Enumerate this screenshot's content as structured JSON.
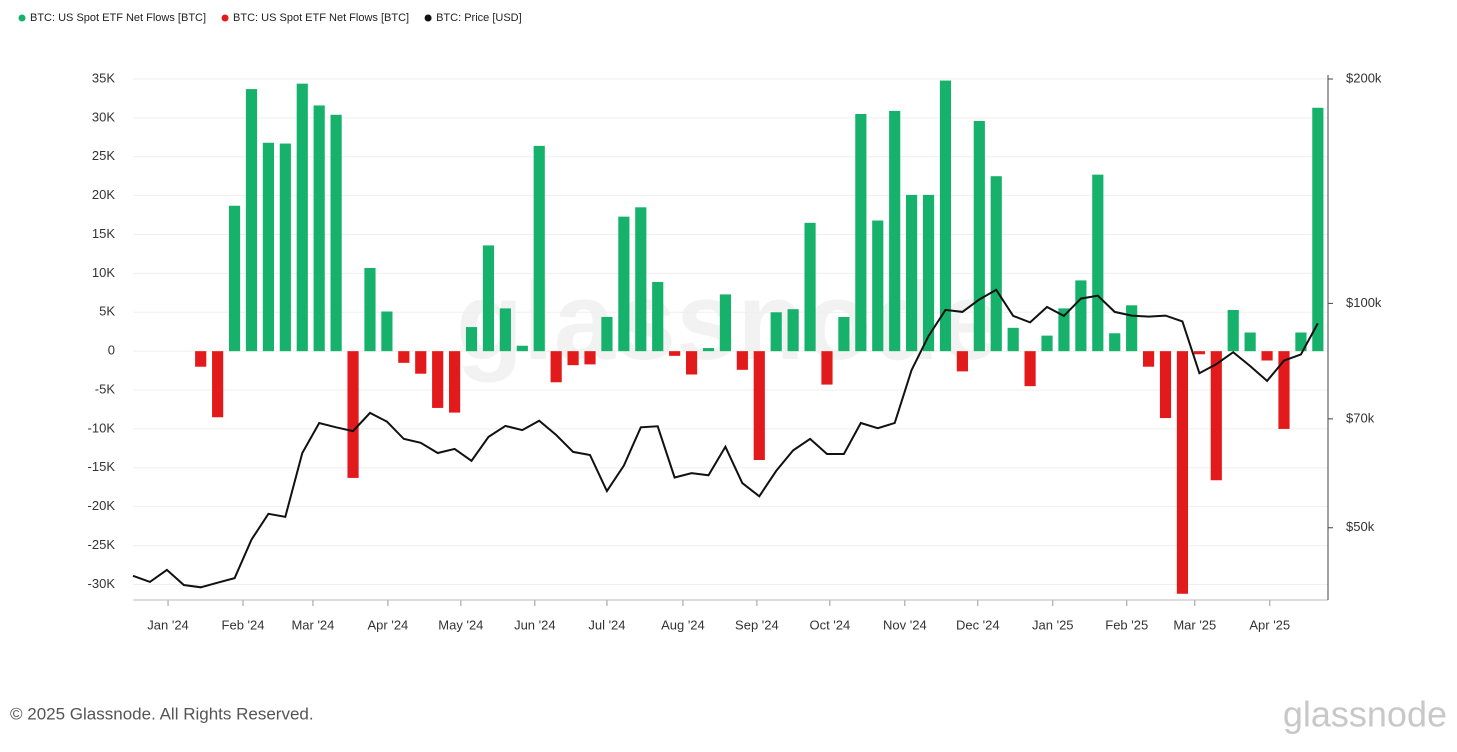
{
  "chart_data": {
    "type": "bar",
    "xlim": [
      0,
      70.6
    ],
    "xticks": [
      {
        "value": 2.07,
        "label": "Jan '24"
      },
      {
        "value": 6.5,
        "label": "Feb '24"
      },
      {
        "value": 10.63,
        "label": "Mar '24"
      },
      {
        "value": 15.06,
        "label": "Apr '24"
      },
      {
        "value": 19.37,
        "label": "May '24"
      },
      {
        "value": 23.74,
        "label": "Jun '24"
      },
      {
        "value": 28.0,
        "label": "Jul '24"
      },
      {
        "value": 32.49,
        "label": "Aug '24"
      },
      {
        "value": 36.86,
        "label": "Sep '24"
      },
      {
        "value": 41.17,
        "label": "Oct '24"
      },
      {
        "value": 45.6,
        "label": "Nov '24"
      },
      {
        "value": 49.91,
        "label": "Dec '24"
      },
      {
        "value": 54.34,
        "label": "Jan '25"
      },
      {
        "value": 58.71,
        "label": "Feb '25"
      },
      {
        "value": 62.73,
        "label": "Mar '25"
      },
      {
        "value": 67.16,
        "label": "Apr '25"
      }
    ],
    "ylim": [
      -32000,
      35000
    ],
    "yticks": [
      {
        "value": 35000,
        "label": "35K"
      },
      {
        "value": 30000,
        "label": "30K"
      },
      {
        "value": 25000,
        "label": "25K"
      },
      {
        "value": 20000,
        "label": "20K"
      },
      {
        "value": 15000,
        "label": "15K"
      },
      {
        "value": 10000,
        "label": "10K"
      },
      {
        "value": 5000,
        "label": "5K"
      },
      0,
      {
        "value": -5000,
        "label": "-5K"
      },
      {
        "value": -10000,
        "label": "-10K"
      },
      {
        "value": -15000,
        "label": "-15K"
      },
      {
        "value": -20000,
        "label": "-20K"
      },
      {
        "value": -25000,
        "label": "-25K"
      },
      {
        "value": -30000,
        "label": "-30K"
      }
    ],
    "y2lim": [
      40000,
      200000
    ],
    "y2log": true,
    "y2ticks": [
      {
        "value": 200000,
        "label": "$200k"
      },
      {
        "value": 100000,
        "label": "$100k"
      },
      {
        "value": 70000,
        "label": "$70k"
      },
      {
        "value": 50000,
        "label": "$50k"
      }
    ],
    "grid": true,
    "legend": "top-left",
    "series": [
      {
        "name": "BTC: US Spot ETF Net Flows [BTC]",
        "color": "#16b26b",
        "values": [
          null,
          null,
          null,
          null,
          null,
          null,
          18700,
          33700,
          26800,
          26700,
          34400,
          31600,
          30400,
          null,
          10700,
          5100,
          null,
          null,
          null,
          null,
          3100,
          13600,
          5500,
          700,
          26400,
          null,
          null,
          null,
          4400,
          17300,
          18500,
          8900,
          null,
          null,
          400,
          7300,
          null,
          null,
          5000,
          5400,
          16500,
          null,
          4400,
          30500,
          16800,
          30900,
          20100,
          20100,
          34800,
          null,
          29600,
          22500,
          3000,
          null,
          2000,
          5500,
          9100,
          22700,
          2300,
          5900,
          null,
          null,
          null,
          null,
          null,
          5300,
          2400,
          null,
          null,
          2400,
          31300
        ]
      },
      {
        "name": "BTC: US Spot ETF Net Flows [BTC]",
        "color": "#e31a1c",
        "values": [
          null,
          null,
          null,
          null,
          -2000,
          -8500,
          null,
          null,
          null,
          null,
          null,
          null,
          null,
          -16300,
          null,
          null,
          -1500,
          -2900,
          -7300,
          -7900,
          null,
          null,
          null,
          null,
          null,
          -4000,
          -1800,
          -1700,
          null,
          null,
          null,
          null,
          -600,
          -3000,
          null,
          null,
          -2400,
          -14000,
          null,
          null,
          null,
          -4300,
          null,
          null,
          null,
          null,
          null,
          null,
          null,
          -2600,
          null,
          null,
          null,
          -4500,
          null,
          null,
          null,
          null,
          null,
          null,
          -2000,
          -8600,
          -31200,
          -400,
          -16600,
          null,
          null,
          -1200,
          -10000,
          null,
          null
        ]
      },
      {
        "name": "BTC: Price [USD]",
        "color": "#111111",
        "type": "line",
        "axis": "y2",
        "values": [
          43100,
          42300,
          43900,
          41900,
          41600,
          42200,
          42800,
          48200,
          52200,
          51700,
          63000,
          69100,
          68200,
          67400,
          71300,
          69400,
          65800,
          65000,
          63000,
          63800,
          61500,
          66200,
          68500,
          67600,
          69600,
          66600,
          63200,
          62600,
          56000,
          60600,
          68200,
          68400,
          58400,
          59200,
          58800,
          64200,
          57400,
          55100,
          59600,
          63500,
          65800,
          62800,
          62800,
          69100,
          68000,
          69100,
          81400,
          90400,
          98000,
          97400,
          101200,
          104300,
          96200,
          94300,
          98900,
          96200,
          101500,
          102400,
          97400,
          96300,
          96000,
          96300,
          94600,
          80600,
          82900,
          86000,
          82400,
          78700,
          83800,
          85400,
          94000
        ]
      }
    ],
    "watermark": "glassnode",
    "footer": "© 2025 Glassnode. All Rights Reserved.",
    "logo": "glassnode"
  }
}
